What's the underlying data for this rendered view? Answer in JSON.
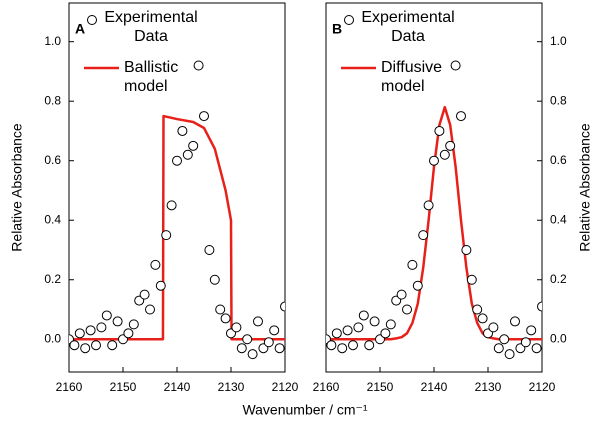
{
  "chart_data": [
    {
      "type": "line",
      "panel_label": "A",
      "xlabel": "Wavenumber / cm⁻¹",
      "ylabel": "Relative Absorbance",
      "yaxis_side": "left",
      "xlim": [
        2160,
        2120
      ],
      "ylim": [
        -0.11,
        1.13
      ],
      "xticks": [
        2160,
        2150,
        2140,
        2130,
        2120
      ],
      "yticks": [
        {
          "value": 0,
          "label": "0.0"
        },
        0.2,
        0.4,
        0.6,
        0.8,
        {
          "value": 1,
          "label": "1.0"
        }
      ],
      "series": [
        {
          "name": "Experimental Data",
          "marker": "circle",
          "color": "#000000",
          "x": [
            2160,
            2159,
            2158,
            2157,
            2156,
            2155,
            2154,
            2153,
            2152,
            2151,
            2150,
            2149,
            2148,
            2147,
            2146,
            2145,
            2144,
            2143,
            2142,
            2141,
            2140,
            2139,
            2138,
            2137,
            2136,
            2135,
            2134,
            2133,
            2132,
            2131,
            2130,
            2129,
            2128,
            2127,
            2126,
            2125,
            2124,
            2123,
            2122,
            2121,
            2120
          ],
          "values": [
            0.0,
            -0.02,
            0.02,
            -0.03,
            0.03,
            -0.02,
            0.04,
            0.08,
            -0.02,
            0.06,
            0.0,
            0.02,
            0.05,
            0.13,
            0.15,
            0.1,
            0.25,
            0.18,
            0.35,
            0.45,
            0.6,
            0.7,
            0.62,
            0.65,
            0.92,
            0.75,
            0.3,
            0.2,
            0.1,
            0.07,
            0.02,
            0.04,
            -0.03,
            0.0,
            -0.05,
            0.06,
            -0.03,
            -0.01,
            0.03,
            -0.03,
            0.11
          ]
        },
        {
          "name": "Ballistic model",
          "marker": "line",
          "color": "#e8201a",
          "x": [
            2160,
            2142.6,
            2142.5,
            2140,
            2137,
            2135,
            2133,
            2131,
            2130,
            2129.9,
            2120
          ],
          "values": [
            0,
            0,
            0.75,
            0.74,
            0.73,
            0.71,
            0.64,
            0.5,
            0.4,
            0,
            0
          ]
        }
      ]
    },
    {
      "type": "line",
      "panel_label": "B",
      "ylabel": "Relative Absorbance",
      "yaxis_side": "right",
      "xlim": [
        2160,
        2120
      ],
      "ylim": [
        -0.11,
        1.13
      ],
      "xticks": [
        2160,
        2150,
        2140,
        2130,
        2120
      ],
      "yticks": [
        {
          "value": 0,
          "label": "0.0"
        },
        0.2,
        0.4,
        0.6,
        0.8,
        {
          "value": 1,
          "label": "1.0"
        }
      ],
      "series": [
        {
          "name": "Experimental Data",
          "marker": "circle",
          "color": "#000000",
          "x": [
            2160,
            2159,
            2158,
            2157,
            2156,
            2155,
            2154,
            2153,
            2152,
            2151,
            2150,
            2149,
            2148,
            2147,
            2146,
            2145,
            2144,
            2143,
            2142,
            2141,
            2140,
            2139,
            2138,
            2137,
            2136,
            2135,
            2134,
            2133,
            2132,
            2131,
            2130,
            2129,
            2128,
            2127,
            2126,
            2125,
            2124,
            2123,
            2122,
            2121,
            2120
          ],
          "values": [
            0.0,
            -0.02,
            0.02,
            -0.03,
            0.03,
            -0.02,
            0.04,
            0.08,
            -0.02,
            0.06,
            0.0,
            0.02,
            0.05,
            0.13,
            0.15,
            0.1,
            0.25,
            0.18,
            0.35,
            0.45,
            0.6,
            0.7,
            0.62,
            0.65,
            0.92,
            0.75,
            0.3,
            0.2,
            0.1,
            0.07,
            0.02,
            0.04,
            -0.03,
            0.0,
            -0.05,
            0.06,
            -0.03,
            -0.01,
            0.03,
            -0.03,
            0.11
          ]
        },
        {
          "name": "Diffusive model",
          "marker": "line",
          "color": "#e8201a",
          "x": [
            2160,
            2148,
            2147,
            2146,
            2145,
            2144,
            2143,
            2142,
            2141,
            2140,
            2139,
            2138,
            2137,
            2136,
            2135,
            2134,
            2133,
            2132,
            2131,
            2130,
            2129,
            2128,
            2120
          ],
          "values": [
            0,
            0,
            0.003,
            0.007,
            0.02,
            0.055,
            0.12,
            0.24,
            0.4,
            0.58,
            0.72,
            0.78,
            0.72,
            0.58,
            0.4,
            0.24,
            0.12,
            0.055,
            0.02,
            0.007,
            0.003,
            0,
            0
          ]
        }
      ]
    }
  ]
}
